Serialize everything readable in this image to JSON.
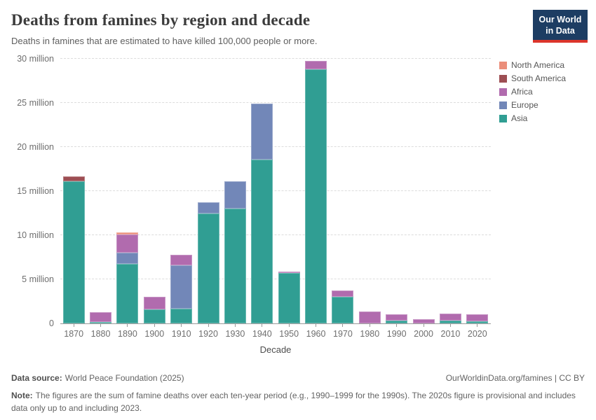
{
  "header": {
    "title": "Deaths from famines by region and decade",
    "subtitle": "Deaths in famines that are estimated to have killed 100,000 people or more."
  },
  "logo": {
    "line1": "Our World",
    "line2": "in Data",
    "bg_color": "#1d3d63",
    "accent_color": "#dc352b"
  },
  "chart_data": {
    "type": "bar",
    "stacked": true,
    "title": "Deaths from famines by region and decade",
    "xlabel": "Decade",
    "ylabel": "",
    "unit": "million deaths",
    "ylim": [
      0,
      30
    ],
    "grid": "horizontal-dashed",
    "legend_position": "right",
    "categories": [
      "1870",
      "1880",
      "1890",
      "1900",
      "1910",
      "1920",
      "1930",
      "1940",
      "1950",
      "1960",
      "1970",
      "1980",
      "1990",
      "2000",
      "2010",
      "2020"
    ],
    "series": [
      {
        "name": "Asia",
        "color": "#309e93",
        "values": [
          16.1,
          0.15,
          6.75,
          1.6,
          1.65,
          12.45,
          13.0,
          18.55,
          5.75,
          28.85,
          3.05,
          0,
          0.35,
          0,
          0.35,
          0.2
        ]
      },
      {
        "name": "Europe",
        "color": "#7287b8",
        "values": [
          0,
          0,
          1.3,
          0,
          4.9,
          1.3,
          3.1,
          6.4,
          0,
          0,
          0,
          0,
          0,
          0,
          0,
          0
        ]
      },
      {
        "name": "Africa",
        "color": "#b16bae",
        "values": [
          0,
          1.15,
          2.0,
          1.45,
          1.25,
          0,
          0,
          0,
          0.15,
          0.9,
          0.65,
          1.35,
          0.65,
          0.5,
          0.75,
          0.8
        ]
      },
      {
        "name": "South America",
        "color": "#9d4e53",
        "values": [
          0.55,
          0,
          0,
          0,
          0,
          0,
          0,
          0,
          0,
          0,
          0,
          0,
          0,
          0,
          0,
          0
        ]
      },
      {
        "name": "North America",
        "color": "#eb8e7a",
        "values": [
          0,
          0,
          0.25,
          0,
          0,
          0,
          0,
          0,
          0,
          0,
          0,
          0,
          0,
          0,
          0,
          0
        ]
      }
    ],
    "totals": [
      16.65,
      1.3,
      10.3,
      3.05,
      7.8,
      13.75,
      16.1,
      24.95,
      5.9,
      29.75,
      3.7,
      1.35,
      1.0,
      0.5,
      1.1,
      1.0
    ],
    "legend_order": [
      "North America",
      "South America",
      "Africa",
      "Europe",
      "Asia"
    ],
    "yticks": [
      {
        "value": 0,
        "label": "0"
      },
      {
        "value": 5,
        "label": "5 million"
      },
      {
        "value": 10,
        "label": "10 million"
      },
      {
        "value": 15,
        "label": "15 million"
      },
      {
        "value": 20,
        "label": "20 million"
      },
      {
        "value": 25,
        "label": "25 million"
      },
      {
        "value": 30,
        "label": "30 million"
      }
    ]
  },
  "footer": {
    "datasource_label": "Data source:",
    "datasource": "World Peace Foundation (2025)",
    "rights": "OurWorldinData.org/famines | CC BY",
    "note_label": "Note:",
    "note": "The figures are the sum of famine deaths over each ten-year period (e.g., 1990–1999 for the 1990s). The 2020s figure is provisional and includes data only up to and including 2023."
  }
}
